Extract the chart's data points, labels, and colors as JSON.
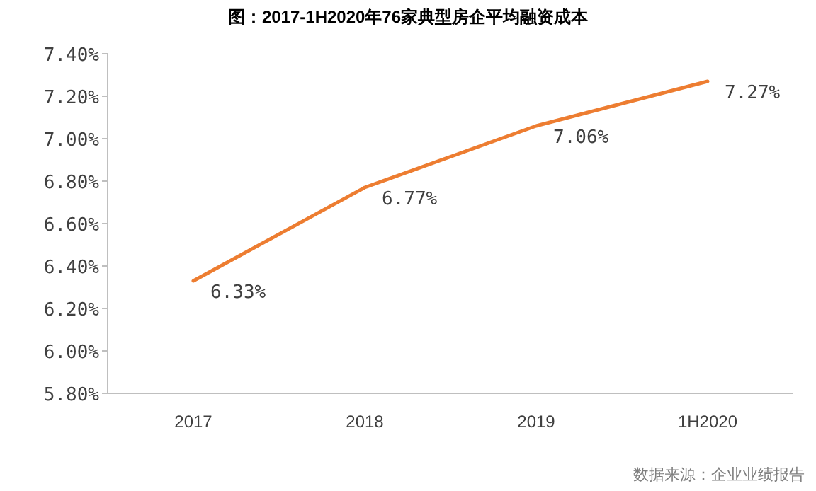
{
  "chart_data": {
    "type": "line",
    "title": "图：2017-1H2020年76家典型房企平均融资成本",
    "categories": [
      "2017",
      "2018",
      "2019",
      "1H2020"
    ],
    "series": [
      {
        "color": "#ed7d31",
        "values": [
          6.33,
          6.77,
          7.06,
          7.27
        ],
        "value_labels": [
          "6.33%",
          "6.77%",
          "7.06%",
          "7.27%"
        ]
      }
    ],
    "ylim": [
      5.8,
      7.4
    ],
    "yticks": [
      {
        "value": 5.8,
        "label": "5.80%"
      },
      {
        "value": 6.0,
        "label": "6.00%"
      },
      {
        "value": 6.2,
        "label": "6.20%"
      },
      {
        "value": 6.4,
        "label": "6.40%"
      },
      {
        "value": 6.6,
        "label": "6.60%"
      },
      {
        "value": 6.8,
        "label": "6.80%"
      },
      {
        "value": 7.0,
        "label": "7.00%"
      },
      {
        "value": 7.2,
        "label": "7.20%"
      },
      {
        "value": 7.4,
        "label": "7.40%"
      }
    ],
    "grid": false,
    "marker": "none",
    "line_style": "solid",
    "annotations": [
      "数据来源：企业业绩报告"
    ]
  }
}
